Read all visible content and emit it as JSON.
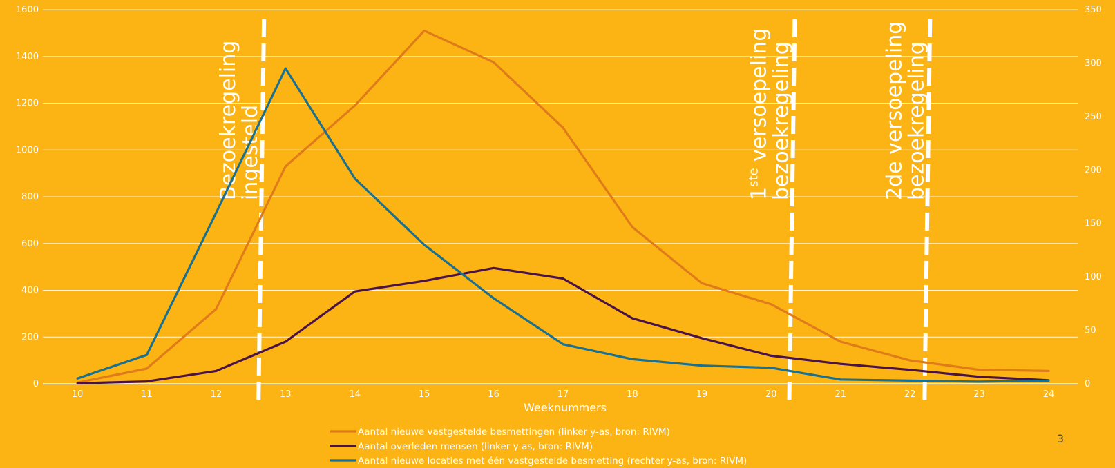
{
  "page_number": "3",
  "chart_data": {
    "type": "line",
    "xlabel": "Weeknummers",
    "x": [
      10,
      11,
      12,
      13,
      14,
      15,
      16,
      17,
      18,
      19,
      20,
      21,
      22,
      23,
      24
    ],
    "x_tick_labels": [
      "10",
      "11",
      "12",
      "13",
      "14",
      "15",
      "16",
      "17",
      "18",
      "19",
      "20",
      "21",
      "22",
      "23",
      "24"
    ],
    "y_left": {
      "range": [
        0,
        1600
      ],
      "ticks": [
        "0",
        "200",
        "400",
        "600",
        "800",
        "1000",
        "1200",
        "1400",
        "1600"
      ]
    },
    "y_right": {
      "range": [
        0,
        350
      ],
      "ticks": [
        "0",
        "50",
        "100",
        "150",
        "200",
        "250",
        "300",
        "350"
      ]
    },
    "grid": true,
    "legend_position": "bottom",
    "series": [
      {
        "name": "Aantal nieuwe vastgestelde besmettingen  (linker y-as, bron: RIVM)",
        "axis": "left",
        "color": "#e07b1a",
        "values": [
          5,
          65,
          320,
          930,
          1190,
          1510,
          1375,
          1095,
          670,
          430,
          340,
          180,
          100,
          60,
          55
        ]
      },
      {
        "name": "Aantal overleden mensen  (linker y-as, bron: RIVM)",
        "axis": "left",
        "color": "#4a1245",
        "values": [
          2,
          10,
          55,
          180,
          395,
          440,
          495,
          450,
          280,
          195,
          120,
          85,
          60,
          30,
          15
        ]
      },
      {
        "name": "Aantal nieuwe locaties met één vastgestelde besmetting  (rechter y-as, bron: RIVM)",
        "axis": "right",
        "color": "#1b6f8f",
        "values": [
          5,
          27,
          160,
          295,
          192,
          130,
          80,
          37,
          23,
          17,
          15,
          4,
          3,
          2,
          3
        ]
      }
    ],
    "annotations": [
      {
        "x": 12.65,
        "lines": [
          "Bezoekregeling",
          "ingesteld"
        ],
        "sup": ""
      },
      {
        "x": 20.3,
        "lines": [
          "versoepeling",
          "bezoekregeling"
        ],
        "prefix": "1",
        "sup": "ste"
      },
      {
        "x": 22.25,
        "lines": [
          "2de versoepeling",
          "bezoekregeling"
        ],
        "sup": ""
      }
    ]
  }
}
